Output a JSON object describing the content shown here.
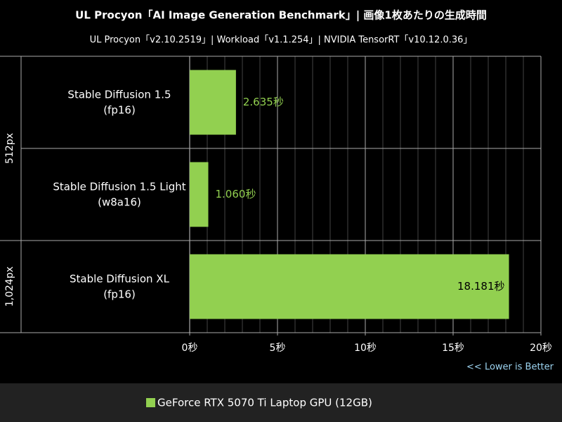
{
  "chart_data": {
    "type": "barh",
    "title": "UL Procyon「AI Image Generation Benchmark」| 画像1枚あたりの生成時間",
    "subtitle": "UL Procyon「v2.10.2519」| Workload「v1.1.254」| NVIDIA TensorRT「v10.12.0.36」",
    "categories": [
      [
        "Stable Diffusion 1.5",
        "(fp16)"
      ],
      [
        "Stable Diffusion 1.5 Light",
        "(w8a16)"
      ],
      [
        "Stable Diffusion XL",
        "(fp16)"
      ]
    ],
    "groups": [
      {
        "label": "512px",
        "count": 2
      },
      {
        "label": "1,024px",
        "count": 1
      }
    ],
    "series": [
      {
        "name": "GeForce RTX 5070 Ti Laptop GPU (12GB)",
        "color": "#92d050",
        "values": [
          2.635,
          1.06,
          18.181
        ],
        "value_labels": [
          "2.635秒",
          "1.060秒",
          "18.181秒"
        ]
      }
    ],
    "xlim": [
      0,
      20
    ],
    "xticks": [
      {
        "value": 0,
        "label": "0秒"
      },
      {
        "value": 5,
        "label": "5秒"
      },
      {
        "value": 10,
        "label": "10秒"
      },
      {
        "value": 15,
        "label": "15秒"
      },
      {
        "value": 20,
        "label": "20秒"
      }
    ],
    "xminorticks": [
      1,
      2,
      3,
      4,
      6,
      7,
      8,
      9,
      11,
      12,
      13,
      14,
      16,
      17,
      18,
      19
    ],
    "annotation": "<< Lower is Better",
    "grid": true
  }
}
